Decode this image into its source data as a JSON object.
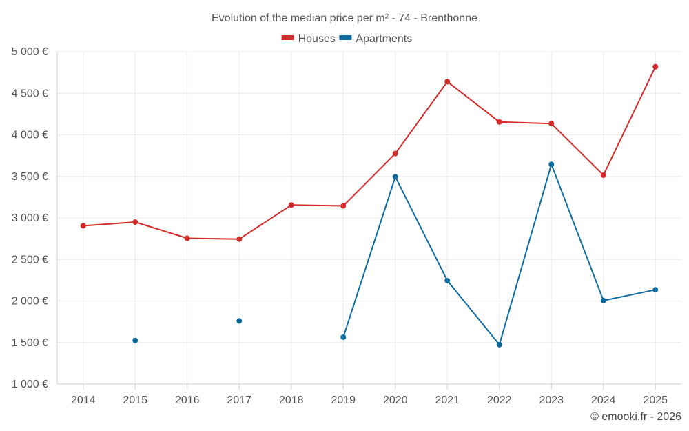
{
  "chart_data": {
    "type": "line",
    "title": "Evolution of the median price per m² - 74 - Brenthonne",
    "categories": [
      "2014",
      "2015",
      "2016",
      "2017",
      "2018",
      "2019",
      "2020",
      "2021",
      "2022",
      "2023",
      "2024",
      "2025"
    ],
    "y_ticks": [
      "1 000 €",
      "1 500 €",
      "2 000 €",
      "2 500 €",
      "3 000 €",
      "3 500 €",
      "4 000 €",
      "4 500 €",
      "5 000 €"
    ],
    "ylim": [
      1000,
      5000
    ],
    "grid": true,
    "legend_position": "top-center",
    "series": [
      {
        "name": "Houses",
        "color": "#d32a2a",
        "values": [
          2905,
          2950,
          2755,
          2745,
          3155,
          3145,
          3775,
          4640,
          4155,
          4135,
          3515,
          4820
        ]
      },
      {
        "name": "Apartments",
        "color": "#0e6ba0",
        "values": [
          null,
          1525,
          null,
          1760,
          null,
          1565,
          3495,
          2245,
          1475,
          3645,
          2005,
          2135
        ]
      }
    ]
  },
  "footer": {
    "credit": "© emooki.fr - 2026"
  }
}
